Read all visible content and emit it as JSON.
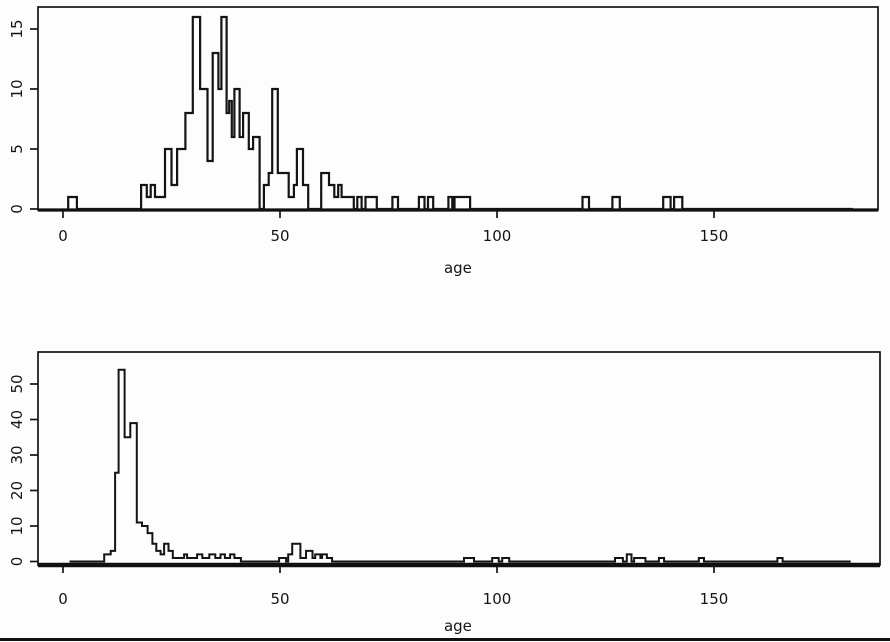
{
  "figure": {
    "background": "#fdfdfd",
    "ink_color": "#111111",
    "bottom_rule_present": true
  },
  "chart_data": [
    {
      "id": "top-age-histogram",
      "type": "step-histogram",
      "title": "",
      "xlabel": "age",
      "ylabel": "",
      "x_ticks": [
        0,
        50,
        100,
        150
      ],
      "x_tick_labels": [
        "0",
        "50",
        "100",
        "150"
      ],
      "y_ticks": [
        0,
        5,
        10,
        15
      ],
      "y_tick_labels": [
        "0",
        "5",
        "10",
        "15"
      ],
      "xlim": [
        -6,
        188
      ],
      "ylim": [
        0,
        17
      ],
      "grid": false,
      "x_breaks": [
        1.2,
        3.2,
        18,
        19.3,
        20.2,
        21.2,
        23.5,
        25,
        26.3,
        28.2,
        29.9,
        31.6,
        33.3,
        34.5,
        35.8,
        36.5,
        37.7,
        38.3,
        38.9,
        39.5,
        40.7,
        41.5,
        42.8,
        43.8,
        45.3,
        46.3,
        47.4,
        48.2,
        49.5,
        52,
        53.2,
        53.9,
        55.3,
        56.5,
        59.5,
        61.3,
        62.5,
        63.4,
        64.2,
        67,
        67.8,
        68.8,
        69.7,
        72.3,
        75.9,
        77.2,
        82,
        83.3,
        84.1,
        85.3,
        88.8,
        89.7,
        90.2,
        93.8,
        119.7,
        121.2,
        126.6,
        128.3,
        138.3,
        140,
        140.8,
        142.7,
        182
      ],
      "counts": [
        1,
        0,
        2,
        1,
        2,
        1,
        5,
        2,
        5,
        8,
        16,
        10,
        4,
        13,
        10,
        16,
        8,
        9,
        6,
        10,
        6,
        8,
        5,
        6,
        0,
        2,
        3,
        10,
        3,
        1,
        2,
        5,
        2,
        0,
        3,
        2,
        1,
        2,
        1,
        0,
        1,
        0,
        1,
        0,
        1,
        0,
        1,
        0,
        1,
        0,
        1,
        0,
        1,
        0,
        1,
        0,
        1,
        0,
        1,
        0,
        1,
        0
      ]
    },
    {
      "id": "bottom-age-histogram",
      "type": "step-histogram",
      "title": "",
      "xlabel": "age",
      "ylabel": "",
      "x_ticks": [
        0,
        50,
        100,
        150
      ],
      "x_tick_labels": [
        "0",
        "50",
        "100",
        "150"
      ],
      "y_ticks": [
        0,
        10,
        20,
        30,
        40,
        50
      ],
      "y_tick_labels": [
        "0",
        "10",
        "20",
        "30",
        "40",
        "50"
      ],
      "xlim": [
        -6,
        188
      ],
      "ylim": [
        0,
        56
      ],
      "grid": false,
      "x_breaks": [
        1.5,
        9.5,
        11,
        12,
        12.8,
        14.2,
        15.5,
        17,
        18.2,
        19.5,
        20.6,
        21.5,
        22.5,
        23.3,
        24.3,
        25.3,
        27.9,
        28.6,
        30.9,
        32.1,
        33.7,
        35.1,
        36.3,
        37.3,
        38.5,
        39.5,
        41,
        49.8,
        51.4,
        51.9,
        52.8,
        54.7,
        56,
        57.5,
        58.1,
        59.3,
        59.7,
        60.8,
        62,
        92.4,
        94.7,
        98.9,
        100.4,
        101.2,
        102.8,
        127.2,
        129,
        129.9,
        131,
        131.6,
        134.2,
        137.3,
        138.5,
        146.5,
        147.7,
        164.6,
        165.8,
        181.5
      ],
      "counts": [
        0,
        2,
        3,
        25,
        54,
        35,
        39,
        11,
        10,
        8,
        5,
        3,
        2,
        5,
        3,
        1,
        2,
        1,
        2,
        1,
        2,
        1,
        2,
        1,
        2,
        1,
        0,
        1,
        0,
        2,
        5,
        1,
        3,
        1,
        2,
        1,
        2,
        1,
        0,
        1,
        0,
        1,
        0,
        1,
        0,
        1,
        0,
        2,
        0,
        1,
        0,
        1,
        0,
        1,
        0,
        1,
        0
      ]
    }
  ]
}
